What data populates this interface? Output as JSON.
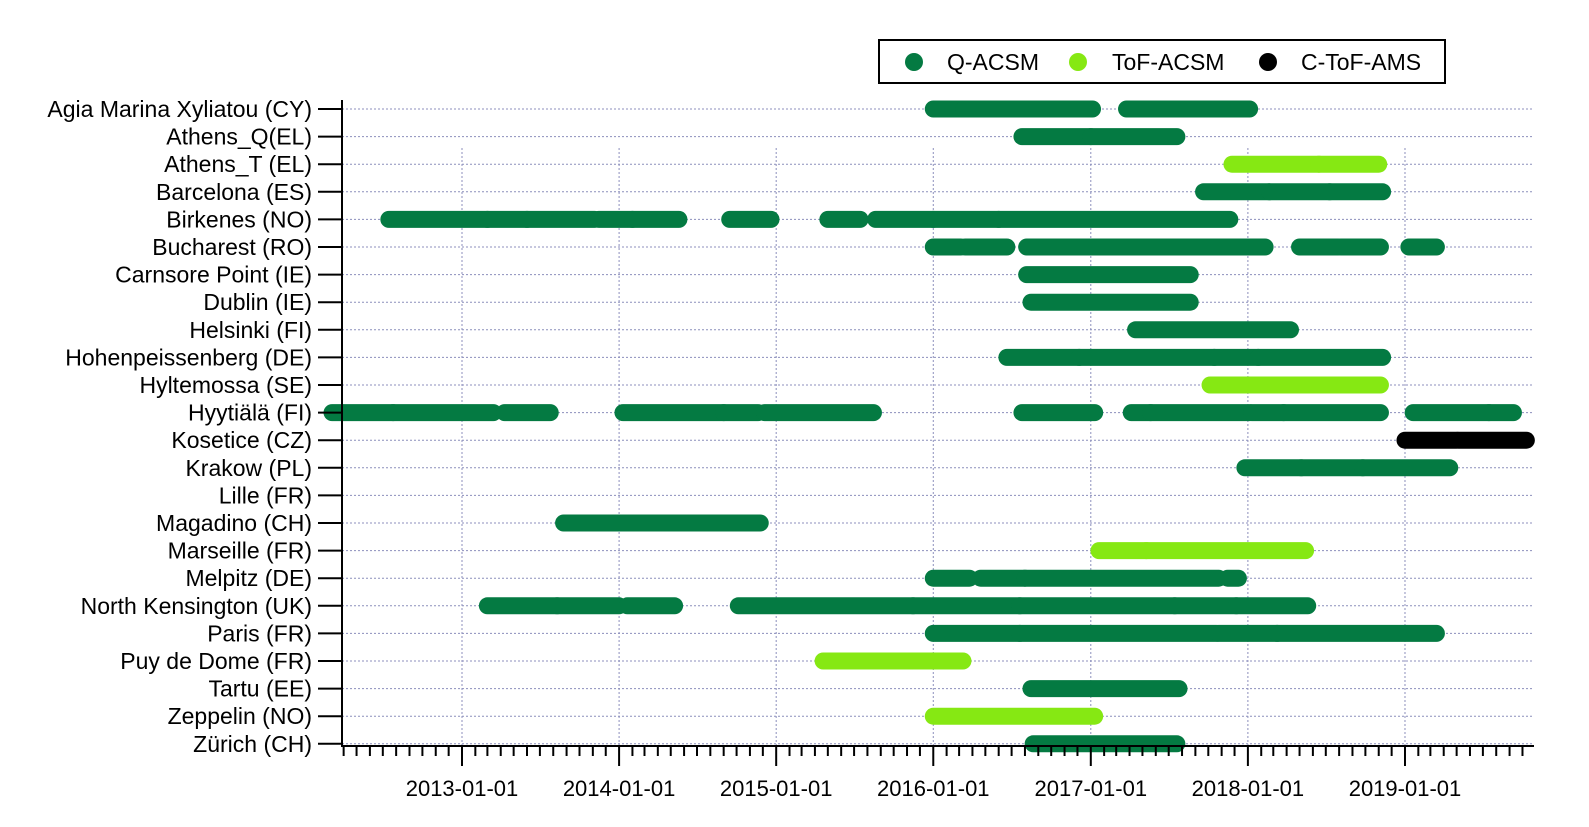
{
  "chart_data": {
    "type": "timeline",
    "title": "",
    "xlabel": "",
    "ylabel": "",
    "xlim": [
      "2012-03-01",
      "2019-10-15"
    ],
    "grid": true,
    "legend_position": "top-right",
    "legend": [
      {
        "name": "Q-ACSM",
        "color": "#047a42"
      },
      {
        "name": "ToF-ACSM",
        "color": "#86e813"
      },
      {
        "name": "C-ToF-AMS",
        "color": "#000000"
      }
    ],
    "x_ticks": [
      "2013-01-01",
      "2014-01-01",
      "2015-01-01",
      "2016-01-01",
      "2017-01-01",
      "2018-01-01",
      "2019-01-01"
    ],
    "sites": [
      {
        "name": "Agia Marina Xyliatou (CY)",
        "periods": [
          {
            "instrument": "Q-ACSM",
            "start": "2016-01-01",
            "end": "2016-03-10"
          },
          {
            "instrument": "Q-ACSM",
            "start": "2016-03-12",
            "end": "2017-01-05"
          },
          {
            "instrument": "Q-ACSM",
            "start": "2017-03-25",
            "end": "2018-01-05"
          }
        ]
      },
      {
        "name": "Athens_Q(EL)",
        "periods": [
          {
            "instrument": "Q-ACSM",
            "start": "2016-07-25",
            "end": "2017-01-01"
          },
          {
            "instrument": "Q-ACSM",
            "start": "2017-01-01",
            "end": "2017-07-20"
          }
        ]
      },
      {
        "name": "Athens_T (EL)",
        "periods": [
          {
            "instrument": "ToF-ACSM",
            "start": "2017-11-25",
            "end": "2018-06-15"
          },
          {
            "instrument": "ToF-ACSM",
            "start": "2018-06-15",
            "end": "2018-11-01"
          }
        ]
      },
      {
        "name": "Barcelona (ES)",
        "periods": [
          {
            "instrument": "Q-ACSM",
            "start": "2017-09-20",
            "end": "2018-02-20"
          },
          {
            "instrument": "Q-ACSM",
            "start": "2018-02-20",
            "end": "2018-07-10"
          },
          {
            "instrument": "Q-ACSM",
            "start": "2018-07-10",
            "end": "2018-11-10"
          }
        ]
      },
      {
        "name": "Birkenes (NO)",
        "periods": [
          {
            "instrument": "Q-ACSM",
            "start": "2012-07-15",
            "end": "2013-03-01"
          },
          {
            "instrument": "Q-ACSM",
            "start": "2013-03-01",
            "end": "2013-06-01"
          },
          {
            "instrument": "Q-ACSM",
            "start": "2013-06-01",
            "end": "2013-11-05"
          },
          {
            "instrument": "Q-ACSM",
            "start": "2013-11-15",
            "end": "2014-02-01"
          },
          {
            "instrument": "Q-ACSM",
            "start": "2014-02-01",
            "end": "2014-05-20"
          },
          {
            "instrument": "Q-ACSM",
            "start": "2014-09-15",
            "end": "2014-12-20"
          },
          {
            "instrument": "Q-ACSM",
            "start": "2015-05-01",
            "end": "2015-07-15"
          },
          {
            "instrument": "Q-ACSM",
            "start": "2015-08-20",
            "end": "2016-01-01"
          },
          {
            "instrument": "Q-ACSM",
            "start": "2016-01-01",
            "end": "2016-06-01"
          },
          {
            "instrument": "Q-ACSM",
            "start": "2016-06-01",
            "end": "2017-11-20"
          }
        ]
      },
      {
        "name": "Bucharest (RO)",
        "periods": [
          {
            "instrument": "Q-ACSM",
            "start": "2016-01-01",
            "end": "2016-03-05"
          },
          {
            "instrument": "Q-ACSM",
            "start": "2016-03-15",
            "end": "2016-06-20"
          },
          {
            "instrument": "Q-ACSM",
            "start": "2016-08-05",
            "end": "2018-02-10"
          },
          {
            "instrument": "Q-ACSM",
            "start": "2018-05-01",
            "end": "2018-07-30"
          },
          {
            "instrument": "Q-ACSM",
            "start": "2018-08-05",
            "end": "2018-11-05"
          },
          {
            "instrument": "Q-ACSM",
            "start": "2019-01-10",
            "end": "2019-03-15"
          }
        ]
      },
      {
        "name": "Carnsore Point (IE)",
        "periods": [
          {
            "instrument": "Q-ACSM",
            "start": "2016-08-05",
            "end": "2017-08-20"
          }
        ]
      },
      {
        "name": "Dublin (IE)",
        "periods": [
          {
            "instrument": "Q-ACSM",
            "start": "2016-08-15",
            "end": "2017-08-20"
          }
        ]
      },
      {
        "name": "Helsinki (FI)",
        "periods": [
          {
            "instrument": "Q-ACSM",
            "start": "2017-04-15",
            "end": "2018-04-10"
          }
        ]
      },
      {
        "name": "Hohenpeissenberg (DE)",
        "periods": [
          {
            "instrument": "Q-ACSM",
            "start": "2016-06-20",
            "end": "2016-12-05"
          },
          {
            "instrument": "Q-ACSM",
            "start": "2016-12-05",
            "end": "2017-10-15"
          },
          {
            "instrument": "Q-ACSM",
            "start": "2017-10-15",
            "end": "2018-01-25"
          },
          {
            "instrument": "Q-ACSM",
            "start": "2018-01-25",
            "end": "2018-11-10"
          }
        ]
      },
      {
        "name": "Hyltemossa (SE)",
        "periods": [
          {
            "instrument": "ToF-ACSM",
            "start": "2017-10-05",
            "end": "2018-11-05"
          }
        ]
      },
      {
        "name": "Hyytiälä (FI)",
        "periods": [
          {
            "instrument": "Q-ACSM",
            "start": "2012-03-05",
            "end": "2012-07-25"
          },
          {
            "instrument": "Q-ACSM",
            "start": "2012-07-25",
            "end": "2013-03-15"
          },
          {
            "instrument": "Q-ACSM",
            "start": "2013-04-10",
            "end": "2013-07-25"
          },
          {
            "instrument": "Q-ACSM",
            "start": "2014-01-10",
            "end": "2014-09-01"
          },
          {
            "instrument": "Q-ACSM",
            "start": "2014-09-01",
            "end": "2014-11-20"
          },
          {
            "instrument": "Q-ACSM",
            "start": "2014-12-05",
            "end": "2015-08-15"
          },
          {
            "instrument": "Q-ACSM",
            "start": "2016-07-25",
            "end": "2017-01-10"
          },
          {
            "instrument": "Q-ACSM",
            "start": "2017-04-05",
            "end": "2017-05-20"
          },
          {
            "instrument": "Q-ACSM",
            "start": "2017-05-20",
            "end": "2018-01-05"
          },
          {
            "instrument": "Q-ACSM",
            "start": "2018-01-10",
            "end": "2018-03-25"
          },
          {
            "instrument": "Q-ACSM",
            "start": "2018-03-25",
            "end": "2018-11-05"
          },
          {
            "instrument": "Q-ACSM",
            "start": "2019-01-20",
            "end": "2019-07-15"
          },
          {
            "instrument": "Q-ACSM",
            "start": "2019-07-15",
            "end": "2019-09-10"
          }
        ]
      },
      {
        "name": "Kosetice (CZ)",
        "periods": [
          {
            "instrument": "C-ToF-AMS",
            "start": "2019-01-01",
            "end": "2019-05-01"
          },
          {
            "instrument": "C-ToF-AMS",
            "start": "2019-05-05",
            "end": "2019-10-10"
          }
        ]
      },
      {
        "name": "Krakow (PL)",
        "periods": [
          {
            "instrument": "Q-ACSM",
            "start": "2017-12-25",
            "end": "2018-05-05"
          },
          {
            "instrument": "Q-ACSM",
            "start": "2018-05-05",
            "end": "2018-09-25"
          },
          {
            "instrument": "Q-ACSM",
            "start": "2018-09-25",
            "end": "2019-04-15"
          }
        ]
      },
      {
        "name": "Lille (FR)",
        "periods": []
      },
      {
        "name": "Magadino (CH)",
        "periods": [
          {
            "instrument": "Q-ACSM",
            "start": "2013-08-25",
            "end": "2014-11-25"
          }
        ]
      },
      {
        "name": "Marseille (FR)",
        "periods": [
          {
            "instrument": "ToF-ACSM",
            "start": "2017-01-20",
            "end": "2017-05-10"
          },
          {
            "instrument": "ToF-ACSM",
            "start": "2017-05-10",
            "end": "2018-05-15"
          }
        ]
      },
      {
        "name": "Melpitz (DE)",
        "periods": [
          {
            "instrument": "Q-ACSM",
            "start": "2016-01-01",
            "end": "2016-03-25"
          },
          {
            "instrument": "Q-ACSM",
            "start": "2016-04-20",
            "end": "2016-08-01"
          },
          {
            "instrument": "Q-ACSM",
            "start": "2016-08-01",
            "end": "2017-10-25"
          },
          {
            "instrument": "Q-ACSM",
            "start": "2017-11-15",
            "end": "2017-12-10"
          }
        ]
      },
      {
        "name": "North Kensington (UK)",
        "periods": [
          {
            "instrument": "Q-ACSM",
            "start": "2013-03-01",
            "end": "2013-08-10"
          },
          {
            "instrument": "Q-ACSM",
            "start": "2013-08-10",
            "end": "2014-01-01"
          },
          {
            "instrument": "Q-ACSM",
            "start": "2014-01-20",
            "end": "2014-05-10"
          },
          {
            "instrument": "Q-ACSM",
            "start": "2014-10-05",
            "end": "2015-11-15"
          },
          {
            "instrument": "Q-ACSM",
            "start": "2015-11-15",
            "end": "2016-07-20"
          },
          {
            "instrument": "Q-ACSM",
            "start": "2016-07-20",
            "end": "2017-07-15"
          },
          {
            "instrument": "Q-ACSM",
            "start": "2017-07-15",
            "end": "2017-12-05"
          },
          {
            "instrument": "Q-ACSM",
            "start": "2017-12-05",
            "end": "2018-05-20"
          }
        ]
      },
      {
        "name": "Paris (FR)",
        "periods": [
          {
            "instrument": "Q-ACSM",
            "start": "2016-01-01",
            "end": "2016-07-20"
          },
          {
            "instrument": "Q-ACSM",
            "start": "2016-07-20",
            "end": "2017-10-20"
          },
          {
            "instrument": "Q-ACSM",
            "start": "2017-10-25",
            "end": "2018-03-10"
          },
          {
            "instrument": "Q-ACSM",
            "start": "2018-03-10",
            "end": "2019-03-15"
          }
        ]
      },
      {
        "name": "Puy de Dome (FR)",
        "periods": [
          {
            "instrument": "ToF-ACSM",
            "start": "2015-04-20",
            "end": "2015-11-15"
          },
          {
            "instrument": "ToF-ACSM",
            "start": "2015-11-15",
            "end": "2016-03-10"
          }
        ]
      },
      {
        "name": "Tartu (EE)",
        "periods": [
          {
            "instrument": "Q-ACSM",
            "start": "2016-08-15",
            "end": "2017-07-25"
          }
        ]
      },
      {
        "name": "Zeppelin (NO)",
        "periods": [
          {
            "instrument": "ToF-ACSM",
            "start": "2016-01-01",
            "end": "2017-01-10"
          }
        ]
      },
      {
        "name": "Zürich (CH)",
        "periods": [
          {
            "instrument": "Q-ACSM",
            "start": "2016-08-20",
            "end": "2017-07-20"
          }
        ]
      }
    ]
  }
}
